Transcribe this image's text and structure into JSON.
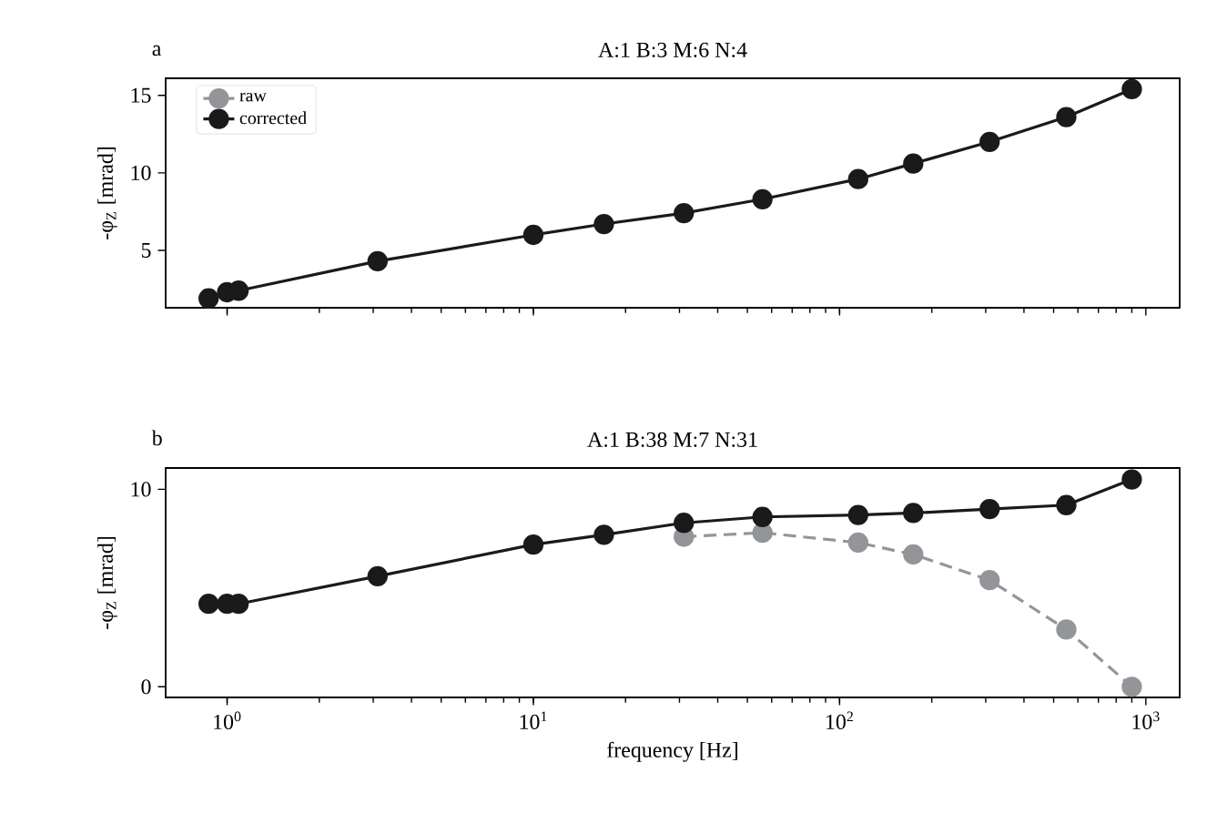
{
  "chart_data": [
    {
      "type": "line",
      "title": "A:1 B:3 M:6 N:4",
      "ylabel": "-φ$_{Z}$ [mrad]",
      "annotations": [
        "a"
      ],
      "x": [
        0.87,
        1.0,
        1.09,
        3.1,
        10,
        17,
        31,
        56,
        115,
        174,
        309,
        550,
        900
      ],
      "series": [
        {
          "name": "raw",
          "color": "#939598",
          "line_style": "dashed",
          "values": [
            null,
            null,
            null,
            null,
            null,
            null,
            null,
            null,
            null,
            null,
            null,
            null,
            null
          ]
        },
        {
          "name": "corrected",
          "color": "#1a1a1a",
          "line_style": "solid",
          "values": [
            1.9,
            2.3,
            2.4,
            4.3,
            6.0,
            6.7,
            7.4,
            8.3,
            9.6,
            10.6,
            12.0,
            13.6,
            15.4
          ]
        }
      ],
      "log": "x",
      "xlim": [
        0.63,
        1290
      ],
      "ylim": [
        1.3,
        16.1
      ],
      "xticks": [
        {
          "value": 1,
          "label": null
        },
        {
          "value": 10,
          "label": null
        },
        {
          "value": 100,
          "label": null
        },
        {
          "value": 1000,
          "label": null
        }
      ],
      "yticks": [
        5,
        10,
        15
      ],
      "tick_labels": "y",
      "marker": "circle",
      "legend": "top left",
      "grid": false
    },
    {
      "type": "line",
      "title": "A:1 B:38 M:7 N:31",
      "xlabel": "frequency [Hz]",
      "ylabel": "-φ$_{Z}$ [mrad]",
      "annotations": [
        "b"
      ],
      "x": [
        0.87,
        1.0,
        1.09,
        3.1,
        10,
        17,
        31,
        56,
        115,
        174,
        309,
        550,
        900
      ],
      "series": [
        {
          "color": "#939598",
          "line_style": "dashed",
          "values": [
            null,
            null,
            null,
            null,
            null,
            null,
            7.6,
            7.8,
            7.3,
            6.7,
            5.4,
            2.9,
            0.0
          ]
        },
        {
          "color": "#1a1a1a",
          "line_style": "solid",
          "values": [
            4.2,
            4.2,
            4.2,
            5.6,
            7.2,
            7.7,
            8.3,
            8.6,
            8.7,
            8.8,
            9.0,
            9.2,
            10.5
          ]
        }
      ],
      "log": "x",
      "xlim": [
        0.63,
        1290
      ],
      "ylim": [
        -0.54,
        11.08
      ],
      "xticks": [
        {
          "value": 1,
          "label": "10$^{0}$"
        },
        {
          "value": 10,
          "label": "10$^{1}$"
        },
        {
          "value": 100,
          "label": "10$^{2}$"
        },
        {
          "value": 1000,
          "label": "10$^{3}$"
        }
      ],
      "yticks": [
        0,
        10
      ],
      "marker": "circle",
      "grid": false
    }
  ]
}
